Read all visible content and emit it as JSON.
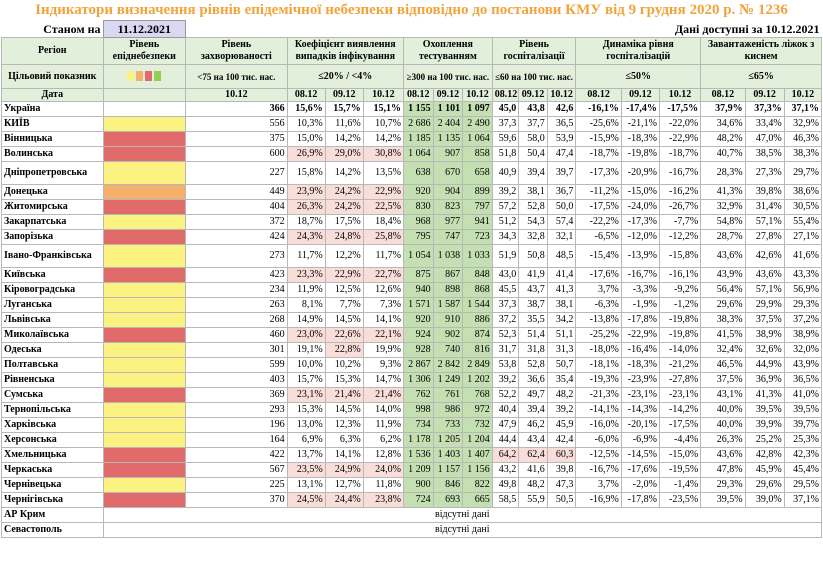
{
  "title": "Індикатори визначення рівнів епідемічної небезпеки відповідно до постанови КМУ від 9 грудня 2020 р. № 1236",
  "as_of_label": "Станом на",
  "as_of_date": "11.12.2021",
  "data_available": "Дані доступні за  10.12.2021",
  "headers": {
    "region": "Регіон",
    "indicator": "Цільовий показник",
    "date": "Дата",
    "level": "Рівень епіднебезпеки",
    "morbidity": "Рівень захворюваності",
    "detection": "Коефіцієнт виявлення випадків інфікування",
    "testing": "Охоплення тестуванням",
    "hospital": "Рівень госпіталізації",
    "dynamics": "Динаміка рівня госпіталізацій",
    "oxygen": "Завантаженість ліжок з киснем"
  },
  "targets": {
    "morbidity": "<75 на 100 тис. нас.",
    "detection": "≤20% / <4%",
    "testing": "≥300 на 100 тис. нас.",
    "hospital": "≤60 на 100 тис. нас.",
    "dynamics": "≤50%",
    "oxygen": "≤65%"
  },
  "dates": {
    "single": "10.12",
    "d1": "08.12",
    "d2": "09.12",
    "d3": "10.12"
  },
  "colors": {
    "yellow": "#fcf281",
    "orange": "#f5b16b",
    "red": "#e16a6a",
    "green": "#92d050",
    "light_green": "#e2efda",
    "pink": "#f4c6c3"
  },
  "legend_swatches": [
    "yellow",
    "orange",
    "red",
    "green"
  ],
  "rows": [
    {
      "name": "Україна",
      "level": "",
      "morb": "366",
      "det": [
        "15,6%",
        "15,7%",
        "15,1%"
      ],
      "test": [
        "1 155",
        "1 101",
        "1 097"
      ],
      "hosp": [
        "45,0",
        "43,8",
        "42,6"
      ],
      "dyn": [
        "-16,1%",
        "-17,4%",
        "-17,5%"
      ],
      "oxy": [
        "37,9%",
        "37,3%",
        "37,1%"
      ]
    },
    {
      "name": "КИЇВ",
      "level": "yellow",
      "morb": "556",
      "det": [
        "10,3%",
        "11,6%",
        "10,7%"
      ],
      "test": [
        "2 686",
        "2 404",
        "2 490"
      ],
      "hosp": [
        "37,3",
        "37,7",
        "36,5"
      ],
      "dyn": [
        "-25,6%",
        "-21,1%",
        "-22,0%"
      ],
      "oxy": [
        "34,6%",
        "33,4%",
        "32,9%"
      ]
    },
    {
      "name": "Вінницька",
      "level": "red",
      "morb": "375",
      "det": [
        "15,0%",
        "14,2%",
        "14,2%"
      ],
      "test": [
        "1 185",
        "1 135",
        "1 064"
      ],
      "hosp": [
        "59,6",
        "58,0",
        "53,9"
      ],
      "dyn": [
        "-15,9%",
        "-18,3%",
        "-22,9%"
      ],
      "oxy": [
        "48,2%",
        "47,0%",
        "46,3%"
      ]
    },
    {
      "name": "Волинська",
      "level": "red",
      "morb": "600",
      "det": [
        "26,9%",
        "29,0%",
        "30,8%"
      ],
      "test": [
        "1 064",
        "907",
        "858"
      ],
      "hosp": [
        "51,8",
        "50,4",
        "47,4"
      ],
      "dyn": [
        "-18,7%",
        "-19,8%",
        "-18,7%"
      ],
      "oxy": [
        "40,7%",
        "38,5%",
        "38,3%"
      ]
    },
    {
      "name": "Дніпропетровська",
      "level": "yellow",
      "morb": "227",
      "det": [
        "15,8%",
        "14,2%",
        "13,5%"
      ],
      "test": [
        "638",
        "670",
        "658"
      ],
      "hosp": [
        "40,9",
        "39,4",
        "39,7"
      ],
      "dyn": [
        "-17,3%",
        "-20,9%",
        "-16,7%"
      ],
      "oxy": [
        "28,3%",
        "27,3%",
        "29,7%"
      ]
    },
    {
      "name": "Донецька",
      "level": "orange",
      "morb": "449",
      "det": [
        "23,9%",
        "24,2%",
        "22,9%"
      ],
      "test": [
        "920",
        "904",
        "899"
      ],
      "hosp": [
        "39,2",
        "38,1",
        "36,7"
      ],
      "dyn": [
        "-11,2%",
        "-15,0%",
        "-16,2%"
      ],
      "oxy": [
        "41,3%",
        "39,8%",
        "38,6%"
      ]
    },
    {
      "name": "Житомирська",
      "level": "red",
      "morb": "404",
      "det": [
        "26,3%",
        "24,2%",
        "22,5%"
      ],
      "test": [
        "830",
        "823",
        "797"
      ],
      "hosp": [
        "57,2",
        "52,8",
        "50,0"
      ],
      "dyn": [
        "-17,5%",
        "-24,0%",
        "-26,7%"
      ],
      "oxy": [
        "32,9%",
        "31,4%",
        "30,5%"
      ]
    },
    {
      "name": "Закарпатська",
      "level": "yellow",
      "morb": "372",
      "det": [
        "18,7%",
        "17,5%",
        "18,4%"
      ],
      "test": [
        "968",
        "977",
        "941"
      ],
      "hosp": [
        "51,2",
        "54,3",
        "57,4"
      ],
      "dyn": [
        "-22,2%",
        "-17,3%",
        "-7,7%"
      ],
      "oxy": [
        "54,8%",
        "57,1%",
        "55,4%"
      ]
    },
    {
      "name": "Запорізька",
      "level": "red",
      "morb": "424",
      "det": [
        "24,3%",
        "24,8%",
        "25,8%"
      ],
      "test": [
        "795",
        "747",
        "723"
      ],
      "hosp": [
        "34,3",
        "32,8",
        "32,1"
      ],
      "dyn": [
        "-6,5%",
        "-12,0%",
        "-12,2%"
      ],
      "oxy": [
        "28,7%",
        "27,8%",
        "27,1%"
      ]
    },
    {
      "name": "Івано-Франківська",
      "level": "yellow",
      "morb": "273",
      "det": [
        "11,7%",
        "12,2%",
        "11,7%"
      ],
      "test": [
        "1 054",
        "1 038",
        "1 033"
      ],
      "hosp": [
        "51,9",
        "50,8",
        "48,5"
      ],
      "dyn": [
        "-15,4%",
        "-13,9%",
        "-15,8%"
      ],
      "oxy": [
        "43,6%",
        "42,6%",
        "41,6%"
      ]
    },
    {
      "name": "Київська",
      "level": "red",
      "morb": "423",
      "det": [
        "23,3%",
        "22,9%",
        "22,7%"
      ],
      "test": [
        "875",
        "867",
        "848"
      ],
      "hosp": [
        "43,0",
        "41,9",
        "41,4"
      ],
      "dyn": [
        "-17,6%",
        "-16,7%",
        "-16,1%"
      ],
      "oxy": [
        "43,9%",
        "43,6%",
        "43,3%"
      ]
    },
    {
      "name": "Кіровоградська",
      "level": "yellow",
      "morb": "234",
      "det": [
        "11,9%",
        "12,5%",
        "12,6%"
      ],
      "test": [
        "940",
        "898",
        "868"
      ],
      "hosp": [
        "45,5",
        "43,7",
        "41,3"
      ],
      "dyn": [
        "3,7%",
        "-3,3%",
        "-9,2%"
      ],
      "oxy": [
        "56,4%",
        "57,1%",
        "56,9%"
      ]
    },
    {
      "name": "Луганська",
      "level": "yellow",
      "morb": "263",
      "det": [
        "8,1%",
        "7,7%",
        "7,3%"
      ],
      "test": [
        "1 571",
        "1 587",
        "1 544"
      ],
      "hosp": [
        "37,3",
        "38,7",
        "38,1"
      ],
      "dyn": [
        "-6,3%",
        "-1,9%",
        "-1,2%"
      ],
      "oxy": [
        "29,6%",
        "29,9%",
        "29,3%"
      ]
    },
    {
      "name": "Львівська",
      "level": "yellow",
      "morb": "268",
      "det": [
        "14,9%",
        "14,5%",
        "14,1%"
      ],
      "test": [
        "920",
        "910",
        "886"
      ],
      "hosp": [
        "37,2",
        "35,5",
        "34,2"
      ],
      "dyn": [
        "-13,8%",
        "-17,8%",
        "-19,8%"
      ],
      "oxy": [
        "38,3%",
        "37,5%",
        "37,2%"
      ]
    },
    {
      "name": "Миколаївська",
      "level": "red",
      "morb": "460",
      "det": [
        "23,0%",
        "22,6%",
        "22,1%"
      ],
      "test": [
        "924",
        "902",
        "874"
      ],
      "hosp": [
        "52,3",
        "51,4",
        "51,1"
      ],
      "dyn": [
        "-25,2%",
        "-22,9%",
        "-19,8%"
      ],
      "oxy": [
        "41,5%",
        "38,9%",
        "38,9%"
      ]
    },
    {
      "name": "Одеська",
      "level": "yellow",
      "morb": "301",
      "det": [
        "19,1%",
        "22,8%",
        "19,9%"
      ],
      "test": [
        "928",
        "740",
        "816"
      ],
      "hosp": [
        "31,7",
        "31,8",
        "31,3"
      ],
      "dyn": [
        "-18,0%",
        "-16,4%",
        "-14,0%"
      ],
      "oxy": [
        "32,4%",
        "32,6%",
        "32,0%"
      ]
    },
    {
      "name": "Полтавська",
      "level": "yellow",
      "morb": "599",
      "det": [
        "10,0%",
        "10,2%",
        "9,3%"
      ],
      "test": [
        "2 867",
        "2 842",
        "2 849"
      ],
      "hosp": [
        "53,8",
        "52,8",
        "50,7"
      ],
      "dyn": [
        "-18,1%",
        "-18,3%",
        "-21,2%"
      ],
      "oxy": [
        "46,5%",
        "44,9%",
        "43,9%"
      ]
    },
    {
      "name": "Рівненська",
      "level": "yellow",
      "morb": "403",
      "det": [
        "15,7%",
        "15,3%",
        "14,7%"
      ],
      "test": [
        "1 306",
        "1 249",
        "1 202"
      ],
      "hosp": [
        "39,2",
        "36,6",
        "35,4"
      ],
      "dyn": [
        "-19,3%",
        "-23,9%",
        "-27,8%"
      ],
      "oxy": [
        "37,5%",
        "36,9%",
        "36,5%"
      ]
    },
    {
      "name": "Сумська",
      "level": "red",
      "morb": "369",
      "det": [
        "23,1%",
        "21,4%",
        "21,4%"
      ],
      "test": [
        "762",
        "761",
        "768"
      ],
      "hosp": [
        "52,2",
        "49,7",
        "48,2"
      ],
      "dyn": [
        "-21,3%",
        "-23,1%",
        "-23,1%"
      ],
      "oxy": [
        "43,1%",
        "41,3%",
        "41,0%"
      ]
    },
    {
      "name": "Тернопільська",
      "level": "yellow",
      "morb": "293",
      "det": [
        "15,3%",
        "14,5%",
        "14,0%"
      ],
      "test": [
        "998",
        "986",
        "972"
      ],
      "hosp": [
        "40,4",
        "39,4",
        "39,2"
      ],
      "dyn": [
        "-14,1%",
        "-14,3%",
        "-14,2%"
      ],
      "oxy": [
        "40,0%",
        "39,5%",
        "39,5%"
      ]
    },
    {
      "name": "Харківська",
      "level": "yellow",
      "morb": "196",
      "det": [
        "13,0%",
        "12,3%",
        "11,9%"
      ],
      "test": [
        "734",
        "733",
        "732"
      ],
      "hosp": [
        "47,9",
        "46,2",
        "45,9"
      ],
      "dyn": [
        "-16,0%",
        "-20,1%",
        "-17,5%"
      ],
      "oxy": [
        "40,0%",
        "39,9%",
        "39,7%"
      ]
    },
    {
      "name": "Херсонська",
      "level": "yellow",
      "morb": "164",
      "det": [
        "6,9%",
        "6,3%",
        "6,2%"
      ],
      "test": [
        "1 178",
        "1 205",
        "1 204"
      ],
      "hosp": [
        "44,4",
        "43,4",
        "42,4"
      ],
      "dyn": [
        "-6,0%",
        "-6,9%",
        "-4,4%"
      ],
      "oxy": [
        "26,3%",
        "25,2%",
        "25,3%"
      ]
    },
    {
      "name": "Хмельницька",
      "level": "red",
      "morb": "422",
      "det": [
        "13,7%",
        "14,1%",
        "12,8%"
      ],
      "test": [
        "1 536",
        "1 403",
        "1 407"
      ],
      "hosp": [
        "64,2",
        "62,4",
        "60,3"
      ],
      "dyn": [
        "-12,5%",
        "-14,5%",
        "-15,0%"
      ],
      "oxy": [
        "43,6%",
        "42,8%",
        "42,3%"
      ]
    },
    {
      "name": "Черкаська",
      "level": "red",
      "morb": "567",
      "det": [
        "23,5%",
        "24,9%",
        "24,0%"
      ],
      "test": [
        "1 209",
        "1 157",
        "1 156"
      ],
      "hosp": [
        "43,2",
        "41,6",
        "39,8"
      ],
      "dyn": [
        "-16,7%",
        "-17,6%",
        "-19,5%"
      ],
      "oxy": [
        "47,8%",
        "45,9%",
        "45,4%"
      ]
    },
    {
      "name": "Чернівецька",
      "level": "yellow",
      "morb": "225",
      "det": [
        "13,1%",
        "12,7%",
        "11,8%"
      ],
      "test": [
        "900",
        "846",
        "822"
      ],
      "hosp": [
        "49,8",
        "48,2",
        "47,3"
      ],
      "dyn": [
        "3,7%",
        "-2,0%",
        "-1,4%"
      ],
      "oxy": [
        "29,3%",
        "29,6%",
        "29,5%"
      ]
    },
    {
      "name": "Чернігівська",
      "level": "red",
      "morb": "370",
      "det": [
        "24,5%",
        "24,4%",
        "23,8%"
      ],
      "test": [
        "724",
        "693",
        "665"
      ],
      "hosp": [
        "58,5",
        "55,9",
        "50,5"
      ],
      "dyn": [
        "-16,9%",
        "-17,8%",
        "-23,5%"
      ],
      "oxy": [
        "39,5%",
        "39,0%",
        "37,1%"
      ]
    }
  ],
  "missing_rows": [
    {
      "name": "АР Крим",
      "note": "відсутні дані"
    },
    {
      "name": "Севастополь",
      "note": "відсутні дані"
    }
  ]
}
